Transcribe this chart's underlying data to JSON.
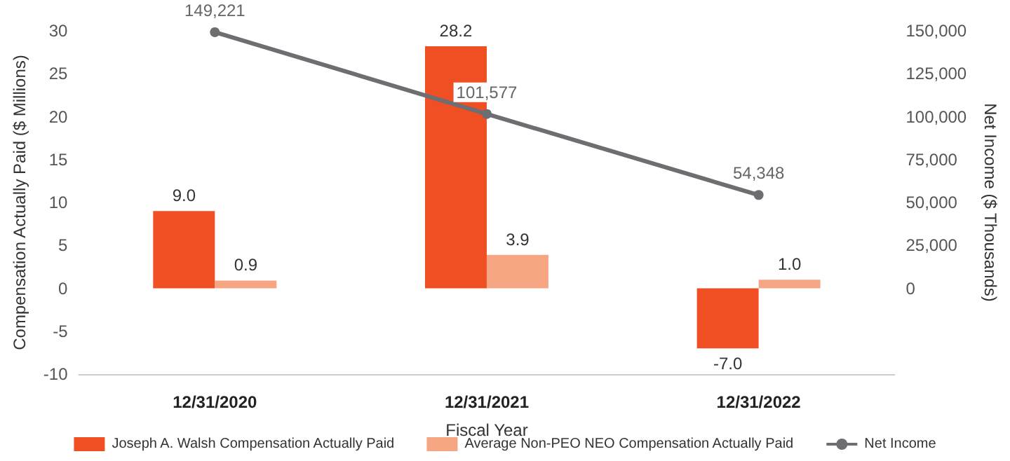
{
  "chart_data": {
    "type": "bar",
    "xlabel": "Fiscal Year",
    "ylabel": "Compensation Actually Paid ($ Millions)",
    "y2label": "Net Income ($ Thousands)",
    "categories": [
      "12/31/2020",
      "12/31/2021",
      "12/31/2022"
    ],
    "series": [
      {
        "name": "Joseph A. Walsh Compensation Actually Paid",
        "color": "#f04e23",
        "values": [
          9.0,
          28.2,
          -7.0
        ],
        "value_labels": [
          "9.0",
          "28.2",
          "-7.0"
        ]
      },
      {
        "name": "Average Non-PEO NEO Compensation Actually Paid",
        "color": "#f7a683",
        "values": [
          0.9,
          3.9,
          1.0
        ],
        "value_labels": [
          "0.9",
          "3.9",
          "1.0"
        ]
      },
      {
        "name": "Net Income",
        "type": "line",
        "axis": "y2",
        "color": "#6d6e71",
        "marker": "circle",
        "values": [
          149221,
          101577,
          54348
        ],
        "value_labels": [
          "149,221",
          "101,577",
          "54,348"
        ]
      }
    ],
    "ylim": [
      -10,
      30
    ],
    "yticks": [
      -10,
      -5,
      0,
      5,
      10,
      15,
      20,
      25,
      30
    ],
    "y2lim": [
      -50000,
      150000
    ],
    "y2ticks": [
      {
        "value": 0,
        "label": "0"
      },
      {
        "value": 25000,
        "label": "25,000"
      },
      {
        "value": 50000,
        "label": "50,000"
      },
      {
        "value": 75000,
        "label": "75,000"
      },
      {
        "value": 100000,
        "label": "100,000"
      },
      {
        "value": 125000,
        "label": "125,000"
      },
      {
        "value": 150000,
        "label": "150,000"
      }
    ],
    "grid": false,
    "legend": "bottom"
  }
}
